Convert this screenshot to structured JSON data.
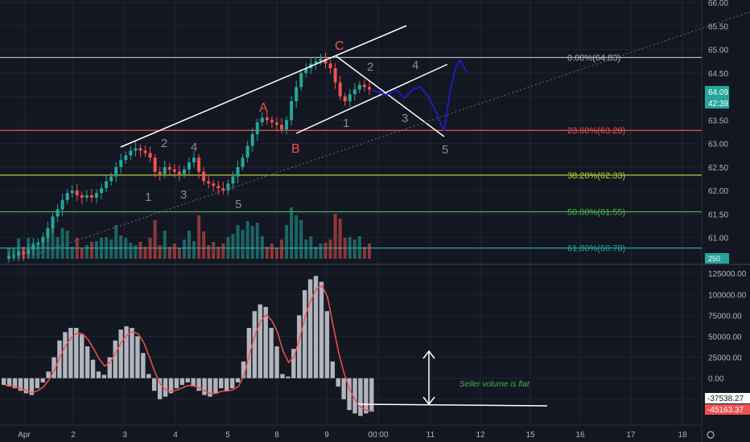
{
  "colors": {
    "background": "#131722",
    "grid": "#1f2433",
    "axis_text": "#b2b5be",
    "bull": "#26a69a",
    "bear": "#ef5350",
    "drawing": "#ffffff",
    "wave": "#8a8d96",
    "abc": "#f0524a",
    "projection": "#1d1dbf",
    "histogram": "#b2b5be",
    "osc_line": "#f0524a",
    "annotation": "#4caf50"
  },
  "chart_data": [
    {
      "type": "candlestick",
      "y_axis": {
        "range": [
          60.5,
          66.0
        ],
        "ticks": [
          "66.00",
          "65.50",
          "65.00",
          "64.50",
          "64.00",
          "63.50",
          "63.00",
          "62.50",
          "62.00",
          "61.50",
          "61.00"
        ]
      },
      "x_axis": {
        "ticks": [
          "Apr",
          "2",
          "3",
          "4",
          "5",
          "8",
          "9",
          "00:00",
          "11",
          "12",
          "15",
          "16",
          "17",
          "18"
        ]
      },
      "price_labels": [
        {
          "text": "64.09",
          "value": 64.09
        },
        {
          "text": "42:39",
          "value": 63.9
        }
      ],
      "volume_label": "250",
      "fibonacci": [
        {
          "label": "0.00%(64.83)",
          "value": 64.83,
          "color": "#b2b5be"
        },
        {
          "label": "23.60%(63.28)",
          "value": 63.28,
          "color": "#ef5350"
        },
        {
          "label": "38.20%(62.33)",
          "value": 62.33,
          "color": "#c0ca33"
        },
        {
          "label": "50.00%(61.55)",
          "value": 61.55,
          "color": "#4caf50"
        },
        {
          "label": "61.80%(60.78)",
          "value": 60.78,
          "color": "#26a69a"
        }
      ],
      "wave_labels_gray": [
        "1",
        "2",
        "3",
        "4",
        "5",
        "1",
        "2",
        "3",
        "4",
        "5"
      ],
      "wave_labels_abc": [
        "A",
        "B",
        "C"
      ],
      "close": [
        60.6,
        60.62,
        60.7,
        60.65,
        60.75,
        60.85,
        60.9,
        61.0,
        61.2,
        61.45,
        61.6,
        61.8,
        61.95,
        62.0,
        61.9,
        61.85,
        61.9,
        61.85,
        61.95,
        62.05,
        62.2,
        62.3,
        62.5,
        62.65,
        62.75,
        62.85,
        62.9,
        62.85,
        62.8,
        62.7,
        62.4,
        62.35,
        62.5,
        62.45,
        62.4,
        62.35,
        62.45,
        62.6,
        62.7,
        62.4,
        62.2,
        62.15,
        62.1,
        62.05,
        62.0,
        62.15,
        62.3,
        62.5,
        62.7,
        62.95,
        63.2,
        63.45,
        63.55,
        63.5,
        63.45,
        63.4,
        63.3,
        63.5,
        63.9,
        64.2,
        64.5,
        64.6,
        64.7,
        64.75,
        64.8,
        64.7,
        64.6,
        64.3,
        64.0,
        63.9,
        64.05,
        64.15,
        64.25,
        64.2,
        64.15
      ]
    },
    {
      "type": "bar",
      "y_axis": {
        "range": [
          -55000,
          130000
        ],
        "ticks": [
          "125000.00",
          "100000.00",
          "75000.00",
          "50000.00",
          "25000.00",
          "0.00",
          "-25000"
        ]
      },
      "value_labels": [
        {
          "text": "-37538.27",
          "value": -37538.27
        },
        {
          "text": "-45163.37",
          "value": -45163.37
        }
      ],
      "annotation": "Seller volume is flat",
      "values": [
        -8000,
        -10000,
        -12000,
        -15000,
        -18000,
        -20000,
        -12000,
        -5000,
        8000,
        25000,
        45000,
        55000,
        60000,
        60000,
        52000,
        38000,
        22000,
        8000,
        4000,
        25000,
        45000,
        58000,
        62000,
        60000,
        50000,
        30000,
        5000,
        -15000,
        -25000,
        -22000,
        -18000,
        -12000,
        -8000,
        -5000,
        -10000,
        -15000,
        -20000,
        -22000,
        -18000,
        -12000,
        -15000,
        -12000,
        -5000,
        20000,
        60000,
        80000,
        88000,
        85000,
        60000,
        38000,
        5000,
        2000,
        35000,
        75000,
        105000,
        118000,
        122000,
        115000,
        80000,
        20000,
        -10000,
        -25000,
        -38000,
        -42000,
        -45000,
        -42000,
        -40000
      ]
    }
  ]
}
